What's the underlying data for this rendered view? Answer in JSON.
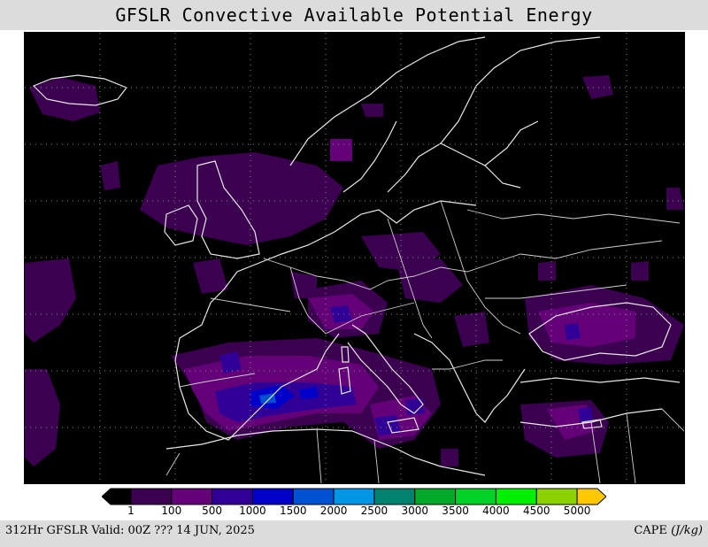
{
  "title": "GFSLR Convective Available Potential Energy",
  "footer": {
    "valid_text": "312Hr GFSLR Valid: 00Z ??? 14 JUN, 2025",
    "variable": "CAPE",
    "unit": "(J/kg)"
  },
  "legend": {
    "colors": [
      "#000000",
      "#3c0050",
      "#640078",
      "#300096",
      "#0000c8",
      "#0050d2",
      "#0096e6",
      "#00826e",
      "#00aa28",
      "#00d228",
      "#00f000",
      "#8cd200",
      "#ffc800"
    ],
    "tick_labels": [
      "1",
      "100",
      "500",
      "1000",
      "1500",
      "2000",
      "2500",
      "3000",
      "3500",
      "4000",
      "4500",
      "5000"
    ]
  }
}
